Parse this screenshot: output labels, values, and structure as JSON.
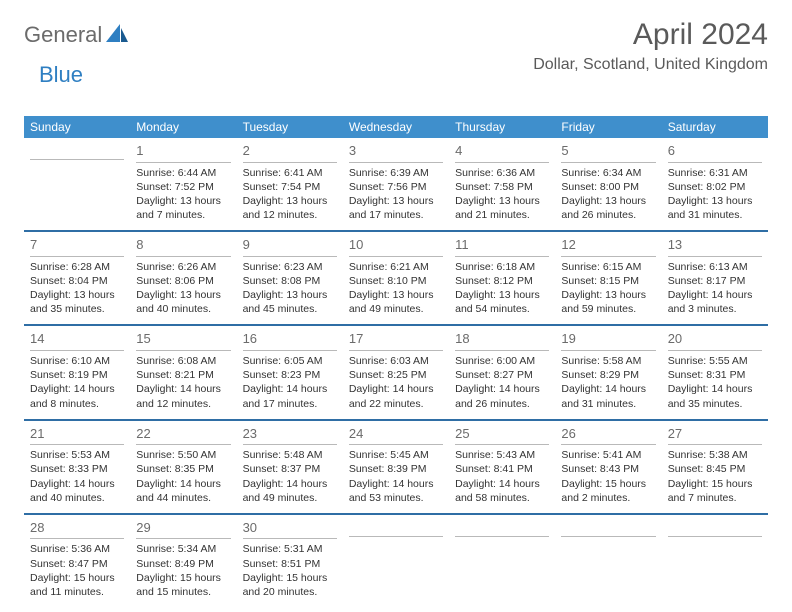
{
  "logo": {
    "part1": "General",
    "part2": "Blue"
  },
  "title": "April 2024",
  "location": "Dollar, Scotland, United Kingdom",
  "colors": {
    "header_bg": "#3f8fcc",
    "week_divider": "#2f6ea5",
    "day_divider": "#b9b9b9",
    "text": "#333333",
    "muted": "#6b6b6b",
    "brand_blue": "#2f7fc2"
  },
  "day_names": [
    "Sunday",
    "Monday",
    "Tuesday",
    "Wednesday",
    "Thursday",
    "Friday",
    "Saturday"
  ],
  "labels": {
    "sunrise": "Sunrise:",
    "sunset": "Sunset:",
    "daylight": "Daylight:"
  },
  "weeks": [
    [
      null,
      {
        "n": "1",
        "sr": "6:44 AM",
        "ss": "7:52 PM",
        "dl1": "13 hours",
        "dl2": "and 7 minutes."
      },
      {
        "n": "2",
        "sr": "6:41 AM",
        "ss": "7:54 PM",
        "dl1": "13 hours",
        "dl2": "and 12 minutes."
      },
      {
        "n": "3",
        "sr": "6:39 AM",
        "ss": "7:56 PM",
        "dl1": "13 hours",
        "dl2": "and 17 minutes."
      },
      {
        "n": "4",
        "sr": "6:36 AM",
        "ss": "7:58 PM",
        "dl1": "13 hours",
        "dl2": "and 21 minutes."
      },
      {
        "n": "5",
        "sr": "6:34 AM",
        "ss": "8:00 PM",
        "dl1": "13 hours",
        "dl2": "and 26 minutes."
      },
      {
        "n": "6",
        "sr": "6:31 AM",
        "ss": "8:02 PM",
        "dl1": "13 hours",
        "dl2": "and 31 minutes."
      }
    ],
    [
      {
        "n": "7",
        "sr": "6:28 AM",
        "ss": "8:04 PM",
        "dl1": "13 hours",
        "dl2": "and 35 minutes."
      },
      {
        "n": "8",
        "sr": "6:26 AM",
        "ss": "8:06 PM",
        "dl1": "13 hours",
        "dl2": "and 40 minutes."
      },
      {
        "n": "9",
        "sr": "6:23 AM",
        "ss": "8:08 PM",
        "dl1": "13 hours",
        "dl2": "and 45 minutes."
      },
      {
        "n": "10",
        "sr": "6:21 AM",
        "ss": "8:10 PM",
        "dl1": "13 hours",
        "dl2": "and 49 minutes."
      },
      {
        "n": "11",
        "sr": "6:18 AM",
        "ss": "8:12 PM",
        "dl1": "13 hours",
        "dl2": "and 54 minutes."
      },
      {
        "n": "12",
        "sr": "6:15 AM",
        "ss": "8:15 PM",
        "dl1": "13 hours",
        "dl2": "and 59 minutes."
      },
      {
        "n": "13",
        "sr": "6:13 AM",
        "ss": "8:17 PM",
        "dl1": "14 hours",
        "dl2": "and 3 minutes."
      }
    ],
    [
      {
        "n": "14",
        "sr": "6:10 AM",
        "ss": "8:19 PM",
        "dl1": "14 hours",
        "dl2": "and 8 minutes."
      },
      {
        "n": "15",
        "sr": "6:08 AM",
        "ss": "8:21 PM",
        "dl1": "14 hours",
        "dl2": "and 12 minutes."
      },
      {
        "n": "16",
        "sr": "6:05 AM",
        "ss": "8:23 PM",
        "dl1": "14 hours",
        "dl2": "and 17 minutes."
      },
      {
        "n": "17",
        "sr": "6:03 AM",
        "ss": "8:25 PM",
        "dl1": "14 hours",
        "dl2": "and 22 minutes."
      },
      {
        "n": "18",
        "sr": "6:00 AM",
        "ss": "8:27 PM",
        "dl1": "14 hours",
        "dl2": "and 26 minutes."
      },
      {
        "n": "19",
        "sr": "5:58 AM",
        "ss": "8:29 PM",
        "dl1": "14 hours",
        "dl2": "and 31 minutes."
      },
      {
        "n": "20",
        "sr": "5:55 AM",
        "ss": "8:31 PM",
        "dl1": "14 hours",
        "dl2": "and 35 minutes."
      }
    ],
    [
      {
        "n": "21",
        "sr": "5:53 AM",
        "ss": "8:33 PM",
        "dl1": "14 hours",
        "dl2": "and 40 minutes."
      },
      {
        "n": "22",
        "sr": "5:50 AM",
        "ss": "8:35 PM",
        "dl1": "14 hours",
        "dl2": "and 44 minutes."
      },
      {
        "n": "23",
        "sr": "5:48 AM",
        "ss": "8:37 PM",
        "dl1": "14 hours",
        "dl2": "and 49 minutes."
      },
      {
        "n": "24",
        "sr": "5:45 AM",
        "ss": "8:39 PM",
        "dl1": "14 hours",
        "dl2": "and 53 minutes."
      },
      {
        "n": "25",
        "sr": "5:43 AM",
        "ss": "8:41 PM",
        "dl1": "14 hours",
        "dl2": "and 58 minutes."
      },
      {
        "n": "26",
        "sr": "5:41 AM",
        "ss": "8:43 PM",
        "dl1": "15 hours",
        "dl2": "and 2 minutes."
      },
      {
        "n": "27",
        "sr": "5:38 AM",
        "ss": "8:45 PM",
        "dl1": "15 hours",
        "dl2": "and 7 minutes."
      }
    ],
    [
      {
        "n": "28",
        "sr": "5:36 AM",
        "ss": "8:47 PM",
        "dl1": "15 hours",
        "dl2": "and 11 minutes."
      },
      {
        "n": "29",
        "sr": "5:34 AM",
        "ss": "8:49 PM",
        "dl1": "15 hours",
        "dl2": "and 15 minutes."
      },
      {
        "n": "30",
        "sr": "5:31 AM",
        "ss": "8:51 PM",
        "dl1": "15 hours",
        "dl2": "and 20 minutes."
      },
      null,
      null,
      null,
      null
    ]
  ]
}
